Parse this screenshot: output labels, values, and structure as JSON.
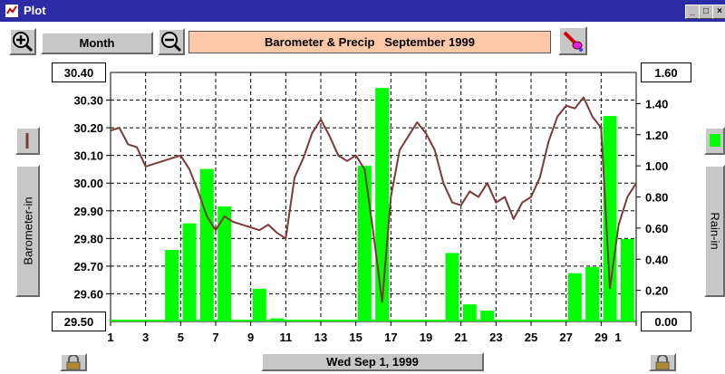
{
  "window": {
    "title": "Plot"
  },
  "toolbar": {
    "period_label": "Month",
    "plot_title": "Barometer & Precip   September 1999"
  },
  "axes": {
    "left_label": "Barometer-in",
    "right_label": "Rain-in",
    "left_top": "30.40",
    "left_bottom": "29.50",
    "right_top": "1.60",
    "right_bottom": "0.00"
  },
  "footer": {
    "date_label": "Wed Sep 1, 1999"
  },
  "colors": {
    "barometer_line": "#7a3a3a",
    "rain_bar": "#00ff00",
    "title_bg": "#ffc8a8"
  },
  "chart_data": {
    "type": "bar+line",
    "title": "Barometer & Precip   September 1999",
    "x_tick_labels": [
      "1",
      "3",
      "5",
      "7",
      "9",
      "11",
      "13",
      "15",
      "17",
      "19",
      "21",
      "23",
      "25",
      "27",
      "29",
      "1"
    ],
    "left_axis": {
      "label": "Barometer-in",
      "ylim": [
        29.5,
        30.4
      ],
      "ticks": [
        "29.50",
        "29.60",
        "29.70",
        "29.80",
        "29.90",
        "30.00",
        "30.10",
        "30.20",
        "30.30",
        "30.40"
      ]
    },
    "right_axis": {
      "label": "Rain-in",
      "ylim": [
        0,
        1.6
      ],
      "ticks": [
        "0.00",
        "0.20",
        "0.40",
        "0.60",
        "0.80",
        "1.00",
        "1.20",
        "1.40",
        "1.60"
      ]
    },
    "grid": true,
    "rain_series": {
      "name": "Rain-in",
      "days": [
        4,
        5,
        6,
        7,
        9,
        10,
        15,
        16,
        20,
        21,
        22,
        27,
        28,
        29,
        30
      ],
      "values": [
        0.46,
        0.63,
        0.98,
        0.74,
        0.21,
        0.02,
        1.0,
        1.5,
        0.44,
        0.11,
        0.07,
        0.31,
        0.35,
        1.32,
        0.53
      ]
    },
    "barometer_series": {
      "name": "Barometer-in",
      "day": [
        1,
        1.5,
        2,
        2.5,
        3,
        3.5,
        4,
        4.5,
        5,
        5.5,
        6,
        6.5,
        7,
        7.5,
        8,
        8.5,
        9,
        9.5,
        10,
        10.5,
        11,
        11.5,
        12,
        12.5,
        13,
        13.5,
        14,
        14.5,
        15,
        15.5,
        16,
        16.5,
        17,
        17.5,
        18,
        18.5,
        19,
        19.5,
        20,
        20.5,
        21,
        21.5,
        22,
        22.5,
        23,
        23.5,
        24,
        24.5,
        25,
        25.5,
        26,
        26.5,
        27,
        27.5,
        28,
        28.5,
        29,
        29.5,
        30,
        30.5,
        31
      ],
      "value": [
        30.19,
        30.2,
        30.14,
        30.13,
        30.06,
        30.07,
        30.08,
        30.09,
        30.1,
        30.05,
        29.97,
        29.88,
        29.83,
        29.88,
        29.86,
        29.85,
        29.84,
        29.83,
        29.85,
        29.82,
        29.8,
        30.02,
        30.09,
        30.18,
        30.23,
        30.17,
        30.1,
        30.08,
        30.1,
        30.05,
        29.82,
        29.57,
        29.95,
        30.12,
        30.17,
        30.22,
        30.18,
        30.12,
        30.0,
        29.93,
        29.92,
        29.97,
        29.95,
        30.0,
        29.93,
        29.95,
        29.87,
        29.93,
        29.95,
        30.02,
        30.15,
        30.24,
        30.28,
        30.27,
        30.31,
        30.24,
        30.2,
        29.62,
        29.85,
        29.95,
        30.0
      ]
    }
  }
}
